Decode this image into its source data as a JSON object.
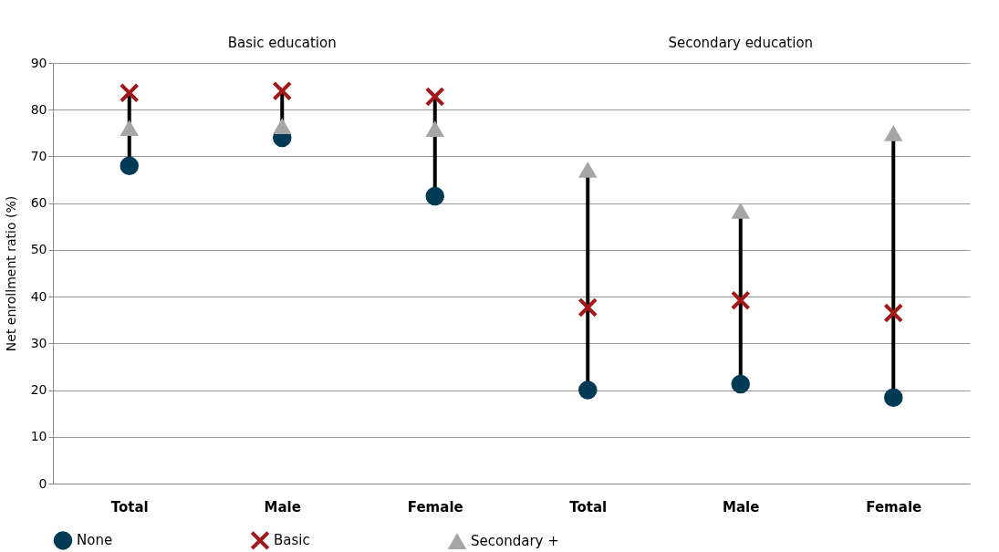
{
  "chart_data": {
    "type": "scatter",
    "ylabel": "Net enrollment ratio (%)",
    "categories": [
      "Total",
      "Male",
      "Female",
      "Total",
      "Male",
      "Female"
    ],
    "series": [
      {
        "name": "None",
        "color": "#003a55",
        "marker": "circle",
        "values": [
          68,
          74,
          61.5,
          20,
          21.3,
          18.4
        ]
      },
      {
        "name": "Basic",
        "color": "#a01818",
        "marker": "cross",
        "values": [
          83.6,
          84,
          82.8,
          37.7,
          39.2,
          36.5
        ]
      },
      {
        "name": "Secondary +",
        "color": "#a6a6a6",
        "marker": "triangle",
        "values": [
          76.1,
          76.5,
          75.9,
          67.2,
          58.4,
          75
        ]
      }
    ],
    "ylim": [
      0,
      90
    ],
    "yticks": [
      0,
      10,
      20,
      30,
      40,
      50,
      60,
      70,
      80,
      90
    ],
    "grid": "y",
    "legend": "bottom",
    "annotations": [
      "Basic education",
      "Secondary education"
    ]
  }
}
